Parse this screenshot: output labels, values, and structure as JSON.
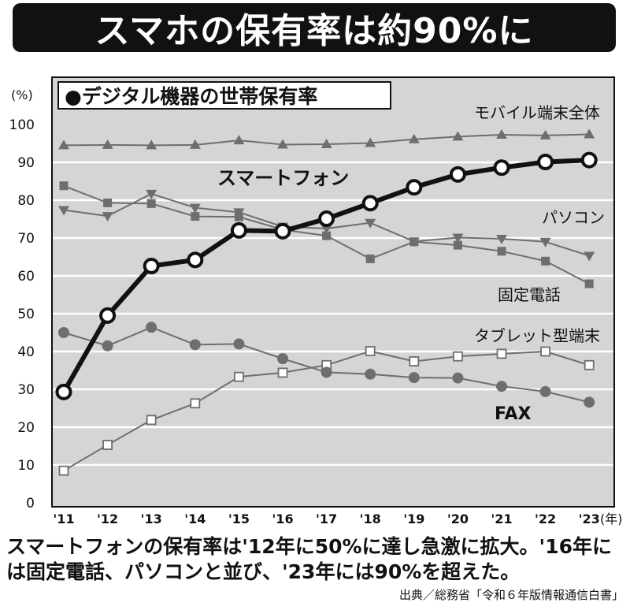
{
  "headline": "スマホの保有率は約90%に",
  "caption": "スマートフォンの保有率は'12年に50%に達し急激に拡大。'16年には固定電話、パソコンと並び、'23年には90%を超えた。",
  "source": "出典／総務省「令和６年版情報通信白書」",
  "colors": {
    "background": "#d4d6d4",
    "smartphone": "#111111",
    "other": "#6e6e6e",
    "grid": "#ffffff"
  },
  "chart_data": {
    "type": "line",
    "title": "●デジタル機器の世帯保有率",
    "ylabel": "(%)",
    "x_unit": "(年)",
    "categories": [
      "'11",
      "'12",
      "'13",
      "'14",
      "'15",
      "'16",
      "'17",
      "'18",
      "'19",
      "'20",
      "'21",
      "'22",
      "'23"
    ],
    "y_ticks": [
      "0",
      "10",
      "20",
      "30",
      "40",
      "50",
      "60",
      "70",
      "80",
      "90",
      "100"
    ],
    "ylim": [
      0,
      100
    ],
    "grid": true,
    "series": [
      {
        "name": "モバイル端末全体",
        "marker": "triangle-up",
        "values": [
          94.5,
          94.6,
          94.5,
          94.6,
          95.8,
          94.7,
          94.8,
          95.1,
          96.1,
          96.8,
          97.3,
          97.1,
          97.4
        ]
      },
      {
        "name": "スマートフォン",
        "marker": "circle",
        "values": [
          29.3,
          49.5,
          62.6,
          64.2,
          72.0,
          71.8,
          75.1,
          79.2,
          83.4,
          86.8,
          88.6,
          90.1,
          90.6
        ]
      },
      {
        "name": "パソコン",
        "marker": "triangle-down",
        "values": [
          77.4,
          75.8,
          81.7,
          78.0,
          76.8,
          73.0,
          72.5,
          74.0,
          69.1,
          70.1,
          69.8,
          69.0,
          65.3
        ]
      },
      {
        "name": "固定電話",
        "marker": "square",
        "values": [
          83.8,
          79.3,
          79.1,
          75.7,
          75.6,
          72.2,
          70.6,
          64.5,
          69.0,
          68.1,
          66.5,
          63.9,
          57.9
        ]
      },
      {
        "name": "タブレット型端末",
        "marker": "square-open",
        "values": [
          8.5,
          15.3,
          21.9,
          26.3,
          33.3,
          34.4,
          36.4,
          40.1,
          37.4,
          38.7,
          39.4,
          40.0,
          36.4
        ]
      },
      {
        "name": "FAX",
        "marker": "circle-gray",
        "values": [
          45.0,
          41.5,
          46.4,
          41.8,
          42.0,
          38.1,
          34.5,
          34.0,
          33.1,
          33.0,
          30.8,
          29.4,
          26.6
        ]
      }
    ]
  }
}
